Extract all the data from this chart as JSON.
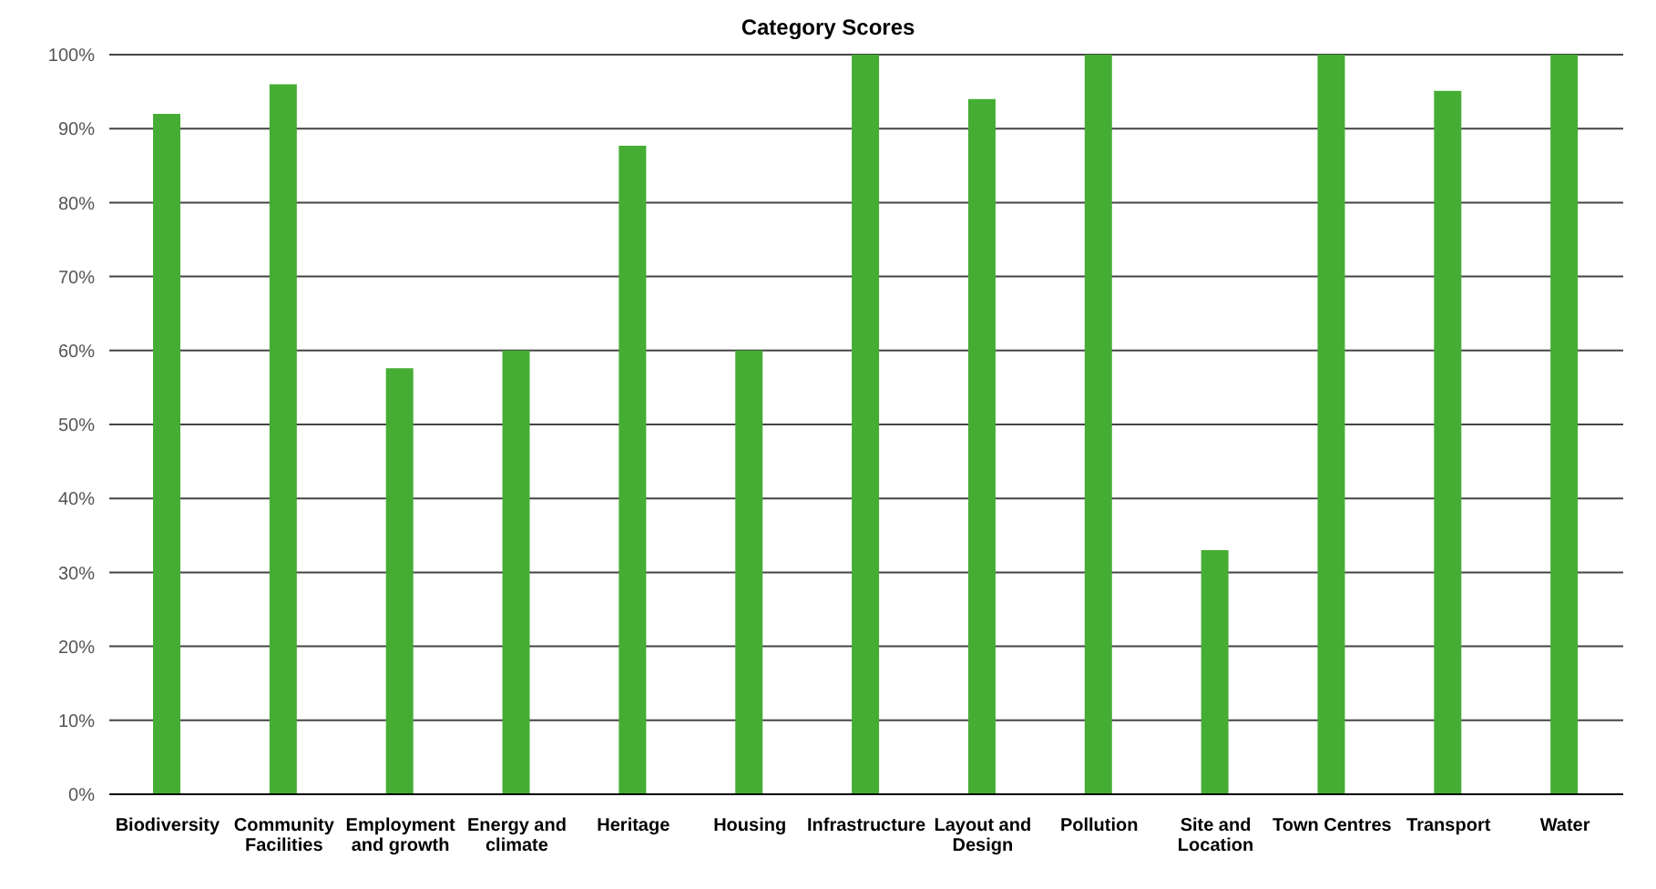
{
  "chart_data": {
    "type": "bar",
    "title": "Category Scores",
    "categories": [
      "Biodiversity",
      "Community Facilities",
      "Employment and growth",
      "Energy and climate",
      "Heritage",
      "Housing",
      "Infrastructure",
      "Layout and Design",
      "Pollution",
      "Site and Location",
      "Town Centres",
      "Transport",
      "Water"
    ],
    "values": [
      92,
      96,
      57.6,
      60,
      87.7,
      60,
      100,
      94,
      100,
      33,
      100,
      95.1,
      100
    ],
    "color": "#46ad34",
    "ylim": [
      0,
      100
    ],
    "yticks": [
      {
        "value": 0,
        "label": "0%"
      },
      {
        "value": 10,
        "label": "10%"
      },
      {
        "value": 20,
        "label": "20%"
      },
      {
        "value": 30,
        "label": "30%"
      },
      {
        "value": 40,
        "label": "40%"
      },
      {
        "value": 50,
        "label": "50%"
      },
      {
        "value": 60,
        "label": "60%"
      },
      {
        "value": 70,
        "label": "70%"
      },
      {
        "value": 80,
        "label": "80%"
      },
      {
        "value": 90,
        "label": "90%"
      },
      {
        "value": 100,
        "label": "100%"
      }
    ],
    "grid": "y"
  }
}
